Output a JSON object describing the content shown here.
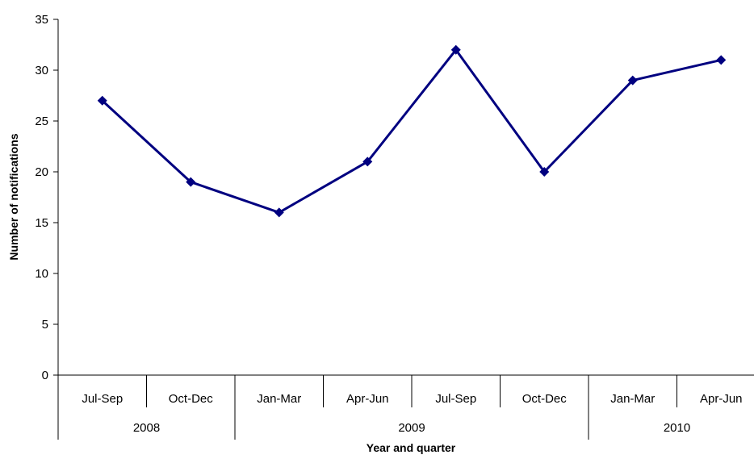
{
  "chart_data": {
    "type": "line",
    "title": "",
    "xlabel": "Year and quarter",
    "ylabel": "Number of notifications",
    "ylim": [
      0,
      35
    ],
    "yticks": [
      "0",
      "5",
      "10",
      "15",
      "20",
      "25",
      "30",
      "35"
    ],
    "grid": false,
    "categories": [
      "Jul-Sep",
      "Oct-Dec",
      "Jan-Mar",
      "Apr-Jun",
      "Jul-Sep",
      "Oct-Dec",
      "Jan-Mar",
      "Apr-Jun"
    ],
    "year_groups": [
      {
        "label": "2008",
        "count": 2
      },
      {
        "label": "2009",
        "count": 4
      },
      {
        "label": "2010",
        "count": 2
      }
    ],
    "series": [
      {
        "values": [
          27,
          19,
          16,
          21,
          32,
          20,
          29,
          31
        ],
        "color": "#000080",
        "marker": "diamond"
      }
    ]
  }
}
